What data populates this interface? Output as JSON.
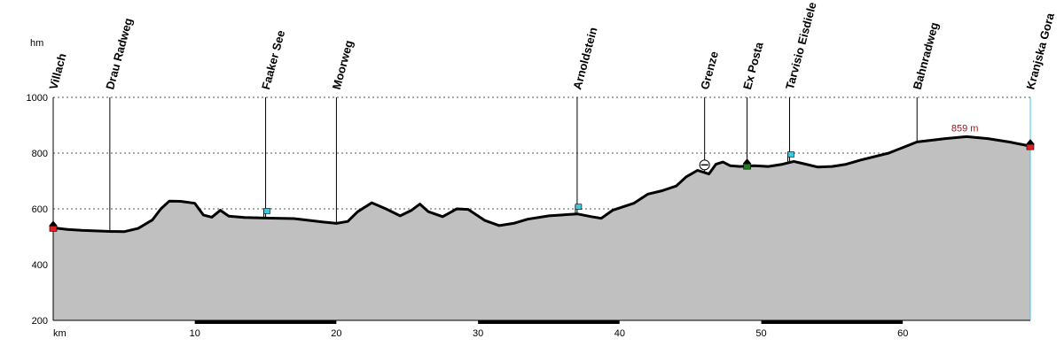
{
  "chart_data": {
    "type": "area",
    "y_unit": "hm",
    "x_unit": "km",
    "xlim": [
      0,
      69
    ],
    "ylim": [
      200,
      1000
    ],
    "y_ticks": [
      200,
      400,
      600,
      800,
      1000
    ],
    "x_ticks": [
      10,
      20,
      30,
      40,
      50,
      60
    ],
    "grid": true,
    "profile": [
      [
        0,
        532
      ],
      [
        1,
        526
      ],
      [
        2,
        523
      ],
      [
        3,
        521
      ],
      [
        4,
        519
      ],
      [
        5,
        518
      ],
      [
        6,
        530
      ],
      [
        7,
        560
      ],
      [
        7.6,
        600
      ],
      [
        8.2,
        628
      ],
      [
        9,
        627
      ],
      [
        10,
        620
      ],
      [
        10.6,
        578
      ],
      [
        11.2,
        570
      ],
      [
        11.8,
        595
      ],
      [
        12.4,
        574
      ],
      [
        13.5,
        569
      ],
      [
        15,
        567
      ],
      [
        17,
        565
      ],
      [
        19,
        553
      ],
      [
        20,
        548
      ],
      [
        20.8,
        555
      ],
      [
        21.5,
        590
      ],
      [
        22.5,
        622
      ],
      [
        23.5,
        600
      ],
      [
        24.5,
        575
      ],
      [
        25.3,
        595
      ],
      [
        25.9,
        617
      ],
      [
        26.5,
        590
      ],
      [
        27.5,
        572
      ],
      [
        28.5,
        600
      ],
      [
        29.3,
        598
      ],
      [
        30.5,
        558
      ],
      [
        31.5,
        540
      ],
      [
        32.5,
        548
      ],
      [
        33.5,
        563
      ],
      [
        35,
        575
      ],
      [
        37,
        582
      ],
      [
        38,
        572
      ],
      [
        38.7,
        566
      ],
      [
        39.5,
        595
      ],
      [
        41,
        620
      ],
      [
        42,
        653
      ],
      [
        43,
        665
      ],
      [
        44,
        682
      ],
      [
        44.7,
        715
      ],
      [
        45.5,
        738
      ],
      [
        46.3,
        725
      ],
      [
        46.8,
        760
      ],
      [
        47.3,
        768
      ],
      [
        47.8,
        755
      ],
      [
        48.5,
        752
      ],
      [
        49.5,
        755
      ],
      [
        50.5,
        752
      ],
      [
        51.5,
        760
      ],
      [
        52.3,
        770
      ],
      [
        53,
        762
      ],
      [
        54,
        750
      ],
      [
        55,
        752
      ],
      [
        56,
        760
      ],
      [
        57,
        775
      ],
      [
        59,
        800
      ],
      [
        61,
        840
      ],
      [
        63,
        852
      ],
      [
        64.5,
        859
      ],
      [
        66,
        852
      ],
      [
        67.5,
        840
      ],
      [
        69,
        825
      ]
    ],
    "waypoints": [
      {
        "name": "Villach",
        "km": 0
      },
      {
        "name": "Drau Radweg",
        "km": 4
      },
      {
        "name": "Faaker See",
        "km": 15
      },
      {
        "name": "Moorweg",
        "km": 20
      },
      {
        "name": "Arnoldstein",
        "km": 37
      },
      {
        "name": "Grenze",
        "km": 46
      },
      {
        "name": "Ex Posta",
        "km": 49
      },
      {
        "name": "Tarvisio Eisdiele",
        "km": 52
      },
      {
        "name": "Bahnradweg",
        "km": 61
      },
      {
        "name": "Kranjska Gora",
        "km": 69
      }
    ],
    "peak_label": "859 m",
    "peak_km": 64.5,
    "peak_alt": 859,
    "markers": [
      {
        "icon": "home-icon",
        "km": 0,
        "alt": 532,
        "color": "#e02020"
      },
      {
        "icon": "info-flag-icon",
        "km": 15,
        "alt": 567,
        "color": "#40c8e0"
      },
      {
        "icon": "info-flag-icon",
        "km": 37,
        "alt": 582,
        "color": "#40c8e0"
      },
      {
        "icon": "border-crossing-icon",
        "km": 46,
        "alt": 745,
        "color": "#ffffff"
      },
      {
        "icon": "green-house-icon",
        "km": 49,
        "alt": 755,
        "color": "#208020"
      },
      {
        "icon": "info-flag-icon",
        "km": 52,
        "alt": 770,
        "color": "#40c8e0"
      },
      {
        "icon": "home-icon",
        "km": 69,
        "alt": 825,
        "color": "#e02020"
      }
    ],
    "colors": {
      "fill": "#c0c0c0",
      "line": "#000000",
      "grid": "#555555",
      "peak": "#a0141e"
    }
  }
}
